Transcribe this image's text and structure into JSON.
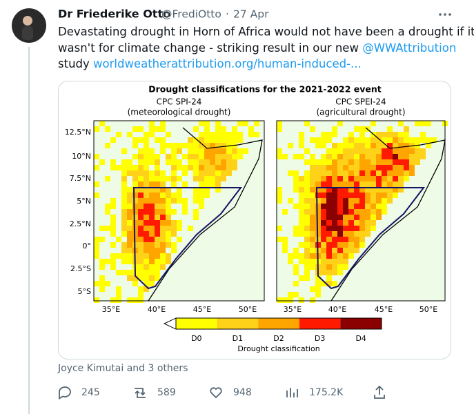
{
  "tweet": {
    "author": "Dr Friederike Otto",
    "handle": "@FrediOtto",
    "separator": "·",
    "date": "27 Apr",
    "line_1": "Devastating drought in Horn of Africa would not have been a drought if it",
    "line_2": "wasn't for climate change - striking result in our new ",
    "mention": "@WWAttribution",
    "line_3": "study ",
    "link": "worldweatherattribution.org/human-induced-..."
  },
  "figure": {
    "title": "Drought classifications for the 2021-2022 event",
    "panels": [
      {
        "title": "CPC SPI-24",
        "subtitle": "(meteorological drought)"
      },
      {
        "title": "CPC SPEI-24",
        "subtitle": "(agricultural drought)"
      }
    ],
    "y_labels": [
      "12.5°N",
      "10°N",
      "7.5°N",
      "5°N",
      "2.5°N",
      "0°",
      "2.5°S",
      "5°S"
    ],
    "x_labels": [
      "35°E",
      "40°E",
      "45°E",
      "50°E"
    ],
    "legend": [
      {
        "label": "D0",
        "color": "#ffff00"
      },
      {
        "label": "D1",
        "color": "#ffd21a"
      },
      {
        "label": "D2",
        "color": "#ffa500"
      },
      {
        "label": "D3",
        "color": "#ff1a00"
      },
      {
        "label": "D4",
        "color": "#8b0000"
      }
    ],
    "legend_title": "Drought classification"
  },
  "footer": {
    "liked_by": "Joyce Kimutai and 3 others",
    "replies": "245",
    "retweets": "589",
    "likes": "948",
    "views": "175.2K"
  }
}
